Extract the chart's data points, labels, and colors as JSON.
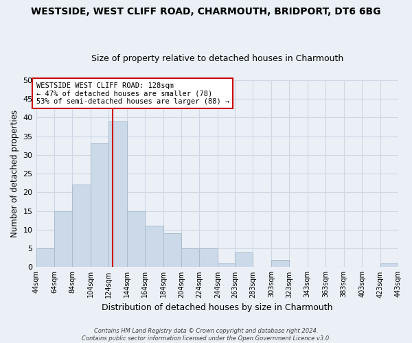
{
  "title": "WESTSIDE, WEST CLIFF ROAD, CHARMOUTH, BRIDPORT, DT6 6BG",
  "subtitle": "Size of property relative to detached houses in Charmouth",
  "xlabel": "Distribution of detached houses by size in Charmouth",
  "ylabel": "Number of detached properties",
  "bar_color": "#ccd9e8",
  "bar_edge_color": "#aabcce",
  "bar_heights": [
    5,
    15,
    22,
    33,
    39,
    15,
    11,
    9,
    5,
    5,
    1,
    4,
    0,
    2,
    0,
    0,
    0,
    0,
    0,
    1
  ],
  "bin_edges": [
    44,
    64,
    84,
    104,
    124,
    144,
    164,
    184,
    204,
    224,
    244,
    263,
    283,
    303,
    323,
    343,
    363,
    383,
    403,
    423,
    443
  ],
  "tick_labels": [
    "44sqm",
    "64sqm",
    "84sqm",
    "104sqm",
    "124sqm",
    "144sqm",
    "164sqm",
    "184sqm",
    "204sqm",
    "224sqm",
    "244sqm",
    "263sqm",
    "283sqm",
    "303sqm",
    "323sqm",
    "343sqm",
    "363sqm",
    "383sqm",
    "403sqm",
    "423sqm",
    "443sqm"
  ],
  "ylim": [
    0,
    50
  ],
  "yticks": [
    0,
    5,
    10,
    15,
    20,
    25,
    30,
    35,
    40,
    45,
    50
  ],
  "vline_x": 128,
  "vline_color": "#cc0000",
  "annotation_title": "WESTSIDE WEST CLIFF ROAD: 128sqm",
  "annotation_line2": "← 47% of detached houses are smaller (78)",
  "annotation_line3": "53% of semi-detached houses are larger (88) →",
  "annotation_box_color": "#ffffff",
  "annotation_box_edge": "#cc0000",
  "footer_text": "Contains HM Land Registry data © Crown copyright and database right 2024.\nContains public sector information licensed under the Open Government Licence v3.0.",
  "grid_color": "#cdd8e4",
  "background_color": "#eaf0f6",
  "plot_bg_color": "#eaf0f6",
  "title_fontsize": 10,
  "subtitle_fontsize": 9,
  "ylabel_fontsize": 8.5,
  "xlabel_fontsize": 9,
  "tick_fontsize": 7,
  "annot_fontsize": 7.5,
  "footer_fontsize": 6
}
